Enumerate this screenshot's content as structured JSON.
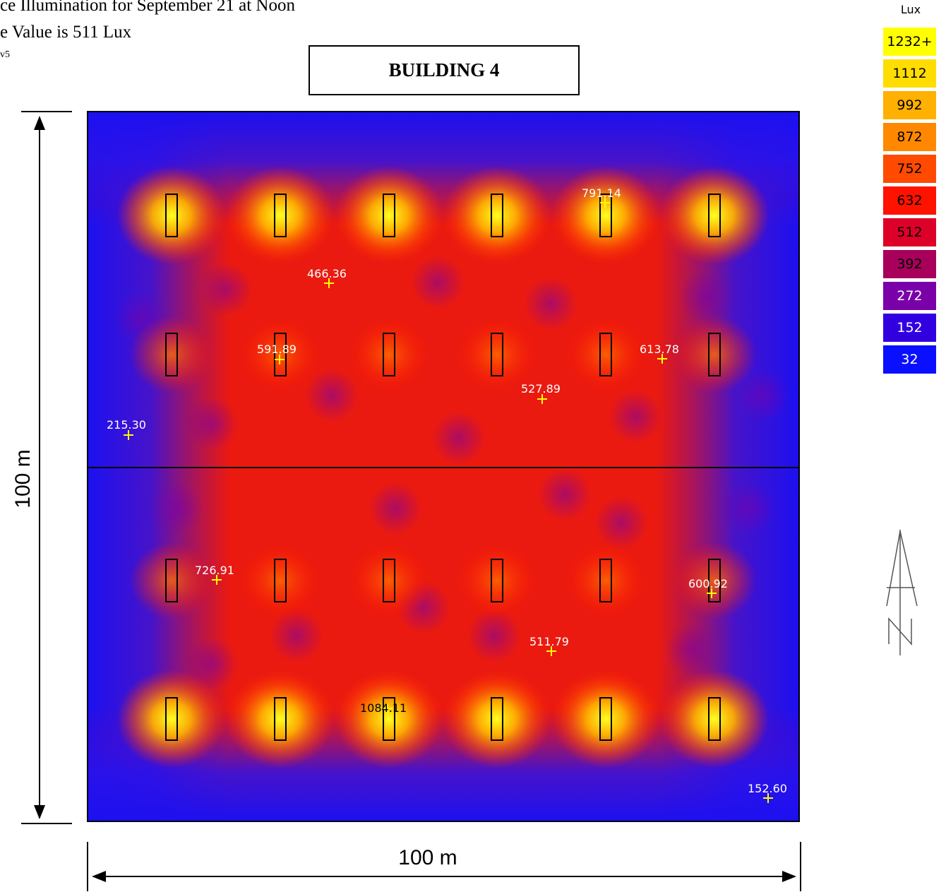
{
  "header": {
    "line1": "ce Illumination for September 21 at Noon",
    "line2": "e Value is 511 Lux",
    "line3": "v5"
  },
  "building_label": "BUILDING 4",
  "dimensions": {
    "vertical": "100 m",
    "horizontal": "100 m"
  },
  "legend": {
    "title": "Lux",
    "entries": [
      {
        "label": "1232+",
        "color": "#ffff00"
      },
      {
        "label": "1112",
        "color": "#ffdd00"
      },
      {
        "label": "992",
        "color": "#ffb000"
      },
      {
        "label": "872",
        "color": "#ff8800"
      },
      {
        "label": "752",
        "color": "#ff4a00"
      },
      {
        "label": "632",
        "color": "#ff1200"
      },
      {
        "label": "512",
        "color": "#dd0028"
      },
      {
        "label": "392",
        "color": "#a8005a"
      },
      {
        "label": "272",
        "color": "#7a00a8"
      },
      {
        "label": "152",
        "color": "#3200e0"
      },
      {
        "label": "32",
        "color": "#0a10ff"
      }
    ]
  },
  "measurements": [
    {
      "value": "791.14"
    },
    {
      "value": "466.36"
    },
    {
      "value": "591.89"
    },
    {
      "value": "613.78"
    },
    {
      "value": "527.89"
    },
    {
      "value": "215.30"
    },
    {
      "value": "726.91"
    },
    {
      "value": "600.92"
    },
    {
      "value": "511.79"
    },
    {
      "value": "1084.11"
    },
    {
      "value": "152.60"
    }
  ]
}
